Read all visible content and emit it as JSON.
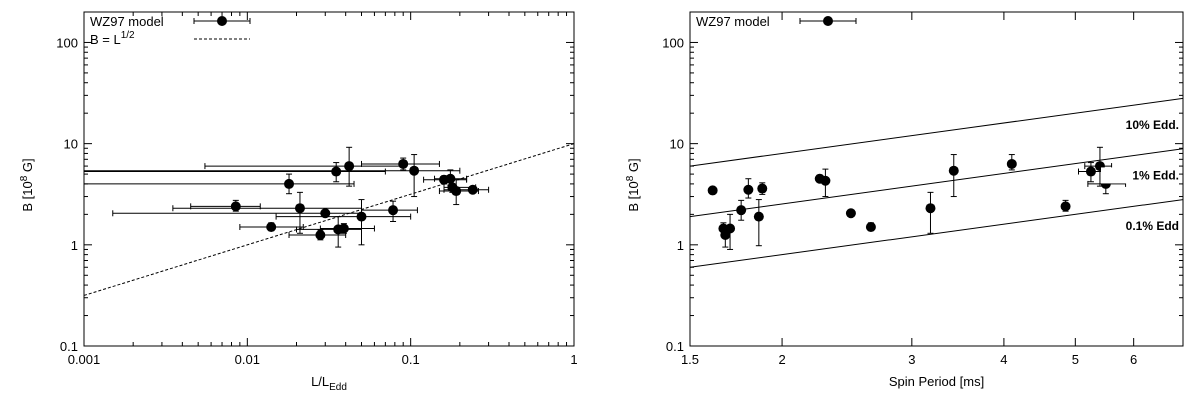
{
  "chart_data": [
    {
      "type": "scatter",
      "xlabel": "L/L",
      "xlabel_sub": "Edd",
      "ylabel": "B [10",
      "ylabel_sup": "8",
      "ylabel_tail": " G]",
      "x_scale": "log",
      "y_scale": "log",
      "xlim": [
        0.001,
        1
      ],
      "ylim": [
        0.1,
        200
      ],
      "x_ticks": [
        {
          "v": 0.001,
          "label": "0.001"
        },
        {
          "v": 0.01,
          "label": "0.01"
        },
        {
          "v": 0.1,
          "label": "0.1"
        },
        {
          "v": 1,
          "label": "1"
        }
      ],
      "y_ticks": [
        {
          "v": 0.1,
          "label": "0.1"
        },
        {
          "v": 1,
          "label": "1"
        },
        {
          "v": 10,
          "label": "10"
        },
        {
          "v": 100,
          "label": "100"
        }
      ],
      "legend": [
        {
          "label": "WZ97 model"
        },
        {
          "label": "B = L",
          "sup": "1/2"
        }
      ],
      "legend_position": "top-left",
      "line": {
        "name": "B = L^1/2",
        "x": [
          0.001,
          1
        ],
        "y": [
          0.316,
          10
        ]
      },
      "series": [
        {
          "name": "WZ97 model",
          "points": [
            {
              "x": 0.0085,
              "y": 2.4,
              "xlo": 0.0045,
              "xhi": 0.012,
              "ylo": 2.15,
              "yhi": 2.75
            },
            {
              "x": 0.014,
              "y": 1.5,
              "xlo": 0.009,
              "xhi": 0.022,
              "ylo": 1.38,
              "yhi": 1.65
            },
            {
              "x": 0.018,
              "y": 4.0,
              "xlo": 0.001,
              "xhi": 0.045,
              "ylo": 3.2,
              "yhi": 5.0
            },
            {
              "x": 0.021,
              "y": 2.3,
              "xlo": 0.0035,
              "xhi": 0.05,
              "ylo": 1.3,
              "yhi": 3.3
            },
            {
              "x": 0.028,
              "y": 1.25,
              "xlo": 0.018,
              "xhi": 0.04,
              "ylo": 1.12,
              "yhi": 1.4
            },
            {
              "x": 0.03,
              "y": 2.05,
              "xlo": 0.0015,
              "xhi": 0.05,
              "ylo": 1.9,
              "yhi": 2.2
            },
            {
              "x": 0.035,
              "y": 5.3,
              "xlo": 0.001,
              "xhi": 0.07,
              "ylo": 4.2,
              "yhi": 6.5
            },
            {
              "x": 0.036,
              "y": 1.42,
              "xlo": 0.02,
              "xhi": 0.05,
              "ylo": 0.95,
              "yhi": 1.9
            },
            {
              "x": 0.039,
              "y": 1.45,
              "xlo": 0.028,
              "xhi": 0.06,
              "ylo": 1.3,
              "yhi": 1.62
            },
            {
              "x": 0.042,
              "y": 6.0,
              "xlo": 0.0055,
              "xhi": 0.09,
              "ylo": 3.8,
              "yhi": 9.2
            },
            {
              "x": 0.05,
              "y": 1.9,
              "xlo": 0.015,
              "xhi": 0.1,
              "ylo": 1.0,
              "yhi": 2.8
            },
            {
              "x": 0.078,
              "y": 2.2,
              "xlo": 0.05,
              "xhi": 0.11,
              "ylo": 1.7,
              "yhi": 2.7
            },
            {
              "x": 0.09,
              "y": 6.3,
              "xlo": 0.05,
              "xhi": 0.15,
              "ylo": 5.5,
              "yhi": 7.2
            },
            {
              "x": 0.105,
              "y": 5.4,
              "xlo": 0.001,
              "xhi": 0.2,
              "ylo": 3.0,
              "yhi": 7.8
            },
            {
              "x": 0.16,
              "y": 4.4,
              "xlo": 0.12,
              "xhi": 0.22,
              "ylo": 4.0,
              "yhi": 4.8
            },
            {
              "x": 0.175,
              "y": 4.5,
              "xlo": 0.14,
              "xhi": 0.22,
              "ylo": 3.9,
              "yhi": 5.5
            },
            {
              "x": 0.18,
              "y": 3.7,
              "xlo": 0.16,
              "xhi": 0.25,
              "ylo": 3.3,
              "yhi": 4.0
            },
            {
              "x": 0.19,
              "y": 3.4,
              "xlo": 0.15,
              "xhi": 0.26,
              "ylo": 2.5,
              "yhi": 4.4
            },
            {
              "x": 0.24,
              "y": 3.5,
              "xlo": 0.16,
              "xhi": 0.3,
              "ylo": 3.3,
              "yhi": 3.7
            }
          ]
        }
      ]
    },
    {
      "type": "scatter",
      "xlabel": "Spin Period [ms]",
      "ylabel": "B [10",
      "ylabel_sup": "8",
      "ylabel_tail": " G]",
      "x_scale": "log",
      "y_scale": "log",
      "xlim": [
        1.5,
        7
      ],
      "ylim": [
        0.1,
        200
      ],
      "x_ticks": [
        {
          "v": 1.5,
          "label": "1.5"
        },
        {
          "v": 2,
          "label": "2"
        },
        {
          "v": 3,
          "label": "3"
        },
        {
          "v": 4,
          "label": "4"
        },
        {
          "v": 5,
          "label": "5"
        },
        {
          "v": 6,
          "label": "6"
        }
      ],
      "y_ticks": [
        {
          "v": 0.1,
          "label": "0.1"
        },
        {
          "v": 1,
          "label": "1"
        },
        {
          "v": 10,
          "label": "10"
        },
        {
          "v": 100,
          "label": "100"
        }
      ],
      "legend": [
        {
          "label": "WZ97 model"
        }
      ],
      "legend_position": "top-left",
      "lines": [
        {
          "name": "10% Edd.",
          "x": [
            1.5,
            7
          ],
          "y": [
            6.0,
            28.0
          ]
        },
        {
          "name": "1% Edd.",
          "x": [
            1.5,
            7
          ],
          "y": [
            1.9,
            8.9
          ]
        },
        {
          "name": "0.1% Edd",
          "x": [
            1.5,
            7
          ],
          "y": [
            0.6,
            2.8
          ]
        }
      ],
      "annotations": [
        "10% Edd.",
        "1% Edd.",
        "0.1% Edd"
      ],
      "series": [
        {
          "name": "WZ97 model",
          "points": [
            {
              "x": 1.61,
              "y": 3.45,
              "ylo": 3.3,
              "yhi": 3.6
            },
            {
              "x": 1.665,
              "y": 1.45,
              "ylo": 1.25,
              "yhi": 1.65
            },
            {
              "x": 1.675,
              "y": 1.25,
              "ylo": 0.95,
              "yhi": 1.5
            },
            {
              "x": 1.7,
              "y": 1.45,
              "ylo": 0.9,
              "yhi": 2.0
            },
            {
              "x": 1.76,
              "y": 2.2,
              "ylo": 1.75,
              "yhi": 2.75
            },
            {
              "x": 1.8,
              "y": 3.5,
              "ylo": 2.9,
              "yhi": 4.5
            },
            {
              "x": 1.86,
              "y": 1.9,
              "ylo": 0.98,
              "yhi": 2.8
            },
            {
              "x": 1.88,
              "y": 3.6,
              "ylo": 3.15,
              "yhi": 4.1
            },
            {
              "x": 2.25,
              "y": 4.5,
              "ylo": 4.2,
              "yhi": 4.9
            },
            {
              "x": 2.29,
              "y": 4.3,
              "ylo": 3.0,
              "yhi": 5.6
            },
            {
              "x": 2.48,
              "y": 2.05,
              "ylo": 1.95,
              "yhi": 2.15
            },
            {
              "x": 2.64,
              "y": 1.5,
              "ylo": 1.38,
              "yhi": 1.65
            },
            {
              "x": 3.18,
              "y": 2.3,
              "ylo": 1.3,
              "yhi": 3.3
            },
            {
              "x": 3.42,
              "y": 5.4,
              "ylo": 3.0,
              "yhi": 7.8
            },
            {
              "x": 4.1,
              "y": 6.3,
              "ylo": 5.5,
              "yhi": 7.8
            },
            {
              "x": 4.85,
              "y": 2.4,
              "ylo": 2.15,
              "yhi": 2.75
            },
            {
              "x": 5.25,
              "y": 5.3,
              "xlo": 5.05,
              "xhi": 5.45,
              "ylo": 4.2,
              "yhi": 6.5
            },
            {
              "x": 5.4,
              "y": 6.0,
              "xlo": 5.15,
              "xhi": 5.6,
              "ylo": 3.8,
              "yhi": 9.2
            },
            {
              "x": 5.5,
              "y": 4.0,
              "xlo": 5.2,
              "xhi": 5.85,
              "ylo": 3.2,
              "yhi": 5.0
            }
          ]
        }
      ]
    }
  ]
}
